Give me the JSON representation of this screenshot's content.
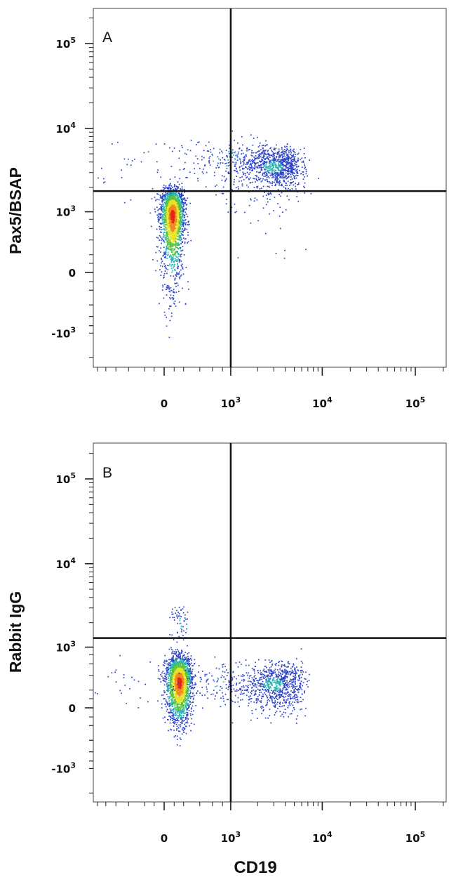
{
  "chart_data": [
    {
      "type": "scatter",
      "panel_label": "A",
      "xlabel": "",
      "ylabel": "Pax5/BSAP",
      "x_scale": "biexponential",
      "y_scale": "biexponential",
      "x_ticks": [
        {
          "base": "0",
          "exp": ""
        },
        {
          "base": "10",
          "exp": "3"
        },
        {
          "base": "10",
          "exp": "4"
        },
        {
          "base": "10",
          "exp": "5"
        }
      ],
      "y_ticks": [
        {
          "base": "10",
          "exp": "5"
        },
        {
          "base": "10",
          "exp": "4"
        },
        {
          "base": "10",
          "exp": "3"
        },
        {
          "base": "0",
          "exp": ""
        },
        {
          "base": "-10",
          "exp": "3"
        }
      ],
      "quadrant_gate": {
        "x": 1000,
        "y": 1800
      },
      "populations": [
        {
          "center": [
            80,
            900
          ],
          "spread": [
            60,
            500
          ],
          "count": 2300,
          "dense": true
        },
        {
          "center": [
            3000,
            3600
          ],
          "spread": [
            1400,
            1100
          ],
          "count": 1100,
          "dense": false
        },
        {
          "center": [
            900,
            4500
          ],
          "spread": [
            700,
            1800
          ],
          "count": 120,
          "dense": false
        }
      ]
    },
    {
      "type": "scatter",
      "panel_label": "B",
      "xlabel": "CD19",
      "ylabel": "Rabbit IgG",
      "x_scale": "biexponential",
      "y_scale": "biexponential",
      "x_ticks": [
        {
          "base": "0",
          "exp": ""
        },
        {
          "base": "10",
          "exp": "3"
        },
        {
          "base": "10",
          "exp": "4"
        },
        {
          "base": "10",
          "exp": "5"
        }
      ],
      "y_ticks": [
        {
          "base": "10",
          "exp": "5"
        },
        {
          "base": "10",
          "exp": "4"
        },
        {
          "base": "10",
          "exp": "3"
        },
        {
          "base": "0",
          "exp": ""
        },
        {
          "base": "-10",
          "exp": "3"
        }
      ],
      "quadrant_gate": {
        "x": 1000,
        "y": 1300
      },
      "populations": [
        {
          "center": [
            150,
            300
          ],
          "spread": [
            70,
            230
          ],
          "count": 2100,
          "dense": true
        },
        {
          "center": [
            3000,
            280
          ],
          "spread": [
            1500,
            160
          ],
          "count": 950,
          "dense": false
        },
        {
          "center": [
            160,
            2000
          ],
          "spread": [
            50,
            600
          ],
          "count": 60,
          "dense": false
        },
        {
          "center": [
            700,
            300
          ],
          "spread": [
            300,
            150
          ],
          "count": 50,
          "dense": false
        }
      ]
    }
  ]
}
